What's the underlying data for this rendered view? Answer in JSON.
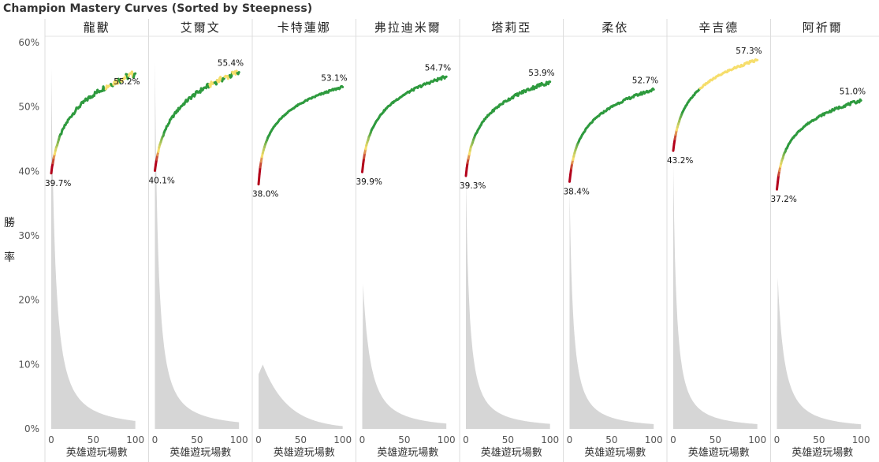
{
  "title": "Champion Mastery Curves (Sorted by Steepness)",
  "chart_data": {
    "type": "line",
    "title": "Champion Mastery Curves (Sorted by Steepness)",
    "ylabel": "勝率",
    "xlabel": "英雄遊玩場數",
    "ylim": [
      0,
      60
    ],
    "y_ticks": [
      "0%",
      "10%",
      "20%",
      "30%",
      "40%",
      "50%",
      "60%"
    ],
    "y_tick_values": [
      0,
      10,
      20,
      30,
      40,
      50,
      60
    ],
    "x_ticks": [
      "0",
      "50",
      "100"
    ],
    "x_tick_values": [
      0,
      50,
      100
    ],
    "xlim": [
      0,
      105
    ],
    "grid": false,
    "color_scale": {
      "low": "#b3001b",
      "mid": "#f6de6c",
      "high": "#2e9a3e"
    },
    "background_area_color": "#d6d6d6",
    "panels": [
      {
        "name": "龍獸",
        "start": 39.7,
        "end": 55.2,
        "start_label": "39.7%",
        "end_label": "55.2%",
        "rate": 5.0,
        "amp": 0.9,
        "dist_peak": 56,
        "dist_decay": 14,
        "dist_type": "sharp",
        "yellow_tail": true
      },
      {
        "name": "艾爾文",
        "start": 40.1,
        "end": 55.4,
        "start_label": "40.1%",
        "end_label": "55.4%",
        "rate": 4.8,
        "amp": 0.8,
        "dist_peak": 57,
        "dist_decay": 12,
        "dist_type": "sharp",
        "yellow_tail": true
      },
      {
        "name": "卡特蓮娜",
        "start": 38.0,
        "end": 53.1,
        "start_label": "38.0%",
        "end_label": "53.1%",
        "rate": 2.0,
        "amp": 0.25,
        "dist_peak": 10,
        "dist_decay": 30,
        "dist_type": "hump",
        "yellow_tail": false
      },
      {
        "name": "弗拉迪米爾",
        "start": 39.9,
        "end": 54.7,
        "start_label": "39.9%",
        "end_label": "54.7%",
        "rate": 3.0,
        "amp": 0.35,
        "dist_peak": 22.5,
        "dist_decay": 16,
        "dist_type": "ramp",
        "yellow_tail": false
      },
      {
        "name": "塔莉亞",
        "start": 39.3,
        "end": 53.9,
        "start_label": "39.3%",
        "end_label": "53.9%",
        "rate": 3.2,
        "amp": 0.5,
        "dist_peak": 39,
        "dist_decay": 13,
        "dist_type": "sharp",
        "yellow_tail": false
      },
      {
        "name": "柔依",
        "start": 38.4,
        "end": 52.7,
        "start_label": "38.4%",
        "end_label": "52.7%",
        "rate": 3.0,
        "amp": 0.35,
        "dist_peak": 37,
        "dist_decay": 13,
        "dist_type": "sharp",
        "yellow_tail": false
      },
      {
        "name": "辛吉德",
        "start": 43.2,
        "end": 57.3,
        "start_label": "43.2%",
        "end_label": "57.3%",
        "rate": 3.5,
        "amp": 0.3,
        "dist_peak": 41,
        "dist_decay": 12,
        "dist_type": "sharp",
        "yellow_tail": true
      },
      {
        "name": "阿祈爾",
        "start": 37.2,
        "end": 51.0,
        "start_label": "37.2%",
        "end_label": "51.0%",
        "rate": 2.6,
        "amp": 0.35,
        "dist_peak": 23.5,
        "dist_decay": 14,
        "dist_type": "ramp",
        "yellow_tail": false
      }
    ]
  }
}
